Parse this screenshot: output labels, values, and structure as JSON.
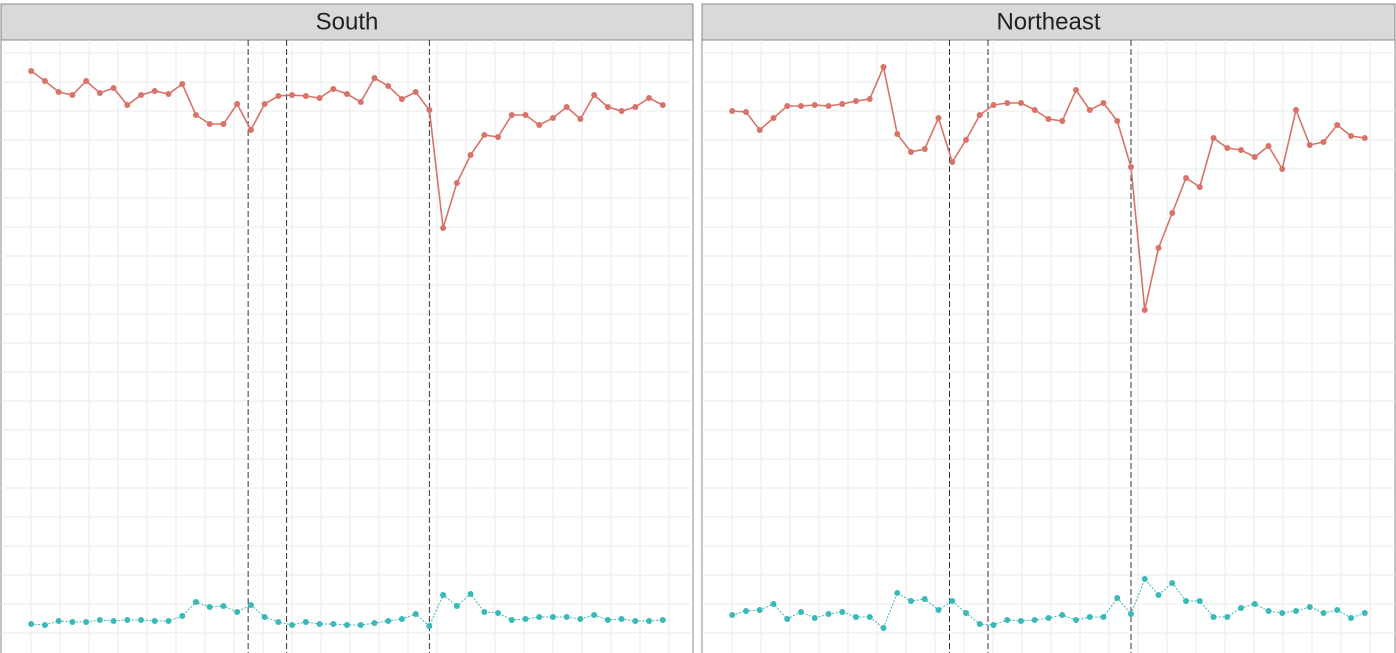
{
  "chart_data": [
    {
      "type": "line",
      "title": "South",
      "x": [
        0,
        1,
        2,
        3,
        4,
        5,
        6,
        7,
        8,
        9,
        10,
        11,
        12,
        13,
        14,
        15,
        16,
        17,
        18,
        19,
        20,
        21,
        22,
        23,
        24,
        25,
        26,
        27,
        28,
        29,
        30,
        31,
        32,
        33,
        34,
        35,
        36,
        37,
        38,
        39,
        40,
        41,
        42,
        43,
        44,
        45,
        46
      ],
      "xlim": [
        -2.2,
        48.2
      ],
      "ylim": [
        0,
        613
      ],
      "grid": true,
      "vlines": [
        15.8,
        18.6,
        29
      ],
      "series": [
        {
          "color": "#d9736a",
          "values": [
            582,
            572,
            561,
            558,
            572,
            560,
            565,
            548,
            558,
            562,
            559,
            569,
            538,
            529,
            529,
            549,
            523,
            549,
            557,
            558,
            557,
            555,
            564,
            559,
            551,
            575,
            567,
            554,
            561,
            543,
            425,
            470,
            498,
            518,
            516,
            538,
            538,
            528,
            535,
            546,
            534,
            558,
            546,
            542,
            546,
            555,
            548
          ]
        },
        {
          "color": "#3bb8b8",
          "values": [
            29,
            28,
            32,
            31,
            31,
            33,
            32,
            33,
            33,
            32,
            32,
            37,
            51,
            46,
            47,
            41,
            48,
            36,
            31,
            28,
            31,
            29,
            29,
            28,
            28,
            30,
            32,
            34,
            39,
            27,
            58,
            47,
            59,
            41,
            40,
            33,
            34,
            36,
            36,
            36,
            34,
            38,
            33,
            34,
            32,
            32,
            33
          ]
        }
      ]
    },
    {
      "type": "line",
      "title": "Northeast",
      "x": [
        0,
        1,
        2,
        3,
        4,
        5,
        6,
        7,
        8,
        9,
        10,
        11,
        12,
        13,
        14,
        15,
        16,
        17,
        18,
        19,
        20,
        21,
        22,
        23,
        24,
        25,
        26,
        27,
        28,
        29,
        30,
        31,
        32,
        33,
        34,
        35,
        36,
        37,
        38,
        39,
        40,
        41,
        42,
        43,
        44,
        45,
        46
      ],
      "xlim": [
        -2.2,
        48.2
      ],
      "ylim": [
        0,
        613
      ],
      "grid": true,
      "vlines": [
        15.8,
        18.6,
        29
      ],
      "series": [
        {
          "color": "#d9736a",
          "values": [
            542,
            541,
            523,
            535,
            547,
            547,
            548,
            547,
            549,
            552,
            554,
            586,
            519,
            501,
            504,
            535,
            491,
            513,
            538,
            548,
            550,
            550,
            543,
            534,
            532,
            563,
            543,
            550,
            532,
            486,
            343,
            405,
            440,
            475,
            466,
            515,
            505,
            503,
            496,
            507,
            484,
            543,
            508,
            511,
            528,
            517,
            515
          ]
        },
        {
          "color": "#3bb8b8",
          "values": [
            38,
            42,
            43,
            49,
            34,
            41,
            35,
            39,
            41,
            36,
            36,
            25,
            60,
            52,
            54,
            43,
            52,
            40,
            29,
            28,
            33,
            32,
            33,
            35,
            38,
            33,
            36,
            36,
            55,
            39,
            74,
            58,
            70,
            52,
            52,
            36,
            36,
            45,
            49,
            42,
            40,
            42,
            46,
            40,
            43,
            35,
            40
          ]
        }
      ]
    }
  ]
}
